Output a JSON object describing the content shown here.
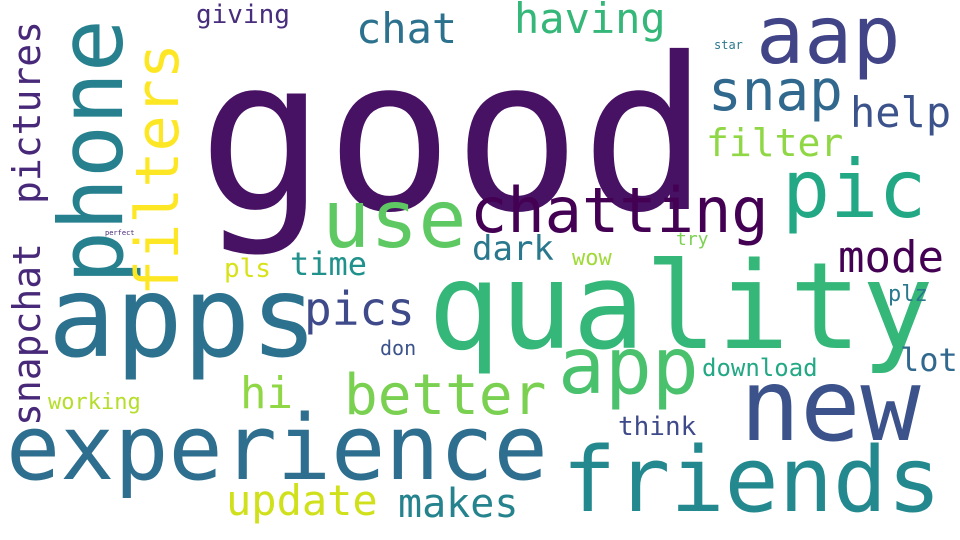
{
  "words": [
    {
      "text": "good",
      "color": "#471164"
    },
    {
      "text": "quality",
      "color": "#35b779"
    },
    {
      "text": "apps",
      "color": "#2c718e"
    },
    {
      "text": "experience",
      "color": "#2e6e8e"
    },
    {
      "text": "phone",
      "color": "#27808e"
    },
    {
      "text": "new",
      "color": "#3b528b"
    },
    {
      "text": "friends",
      "color": "#23898e"
    },
    {
      "text": "aap",
      "color": "#414487"
    },
    {
      "text": "use",
      "color": "#5ec962"
    },
    {
      "text": "pic",
      "color": "#22a884"
    },
    {
      "text": "app",
      "color": "#4ac16d"
    },
    {
      "text": "chatting",
      "color": "#440154"
    },
    {
      "text": "filters",
      "color": "#fde725"
    },
    {
      "text": "snap",
      "color": "#31688e"
    },
    {
      "text": "better",
      "color": "#7ad151"
    },
    {
      "text": "pics",
      "color": "#3e4a89"
    },
    {
      "text": "snapchat",
      "color": "#482878"
    },
    {
      "text": "pictures",
      "color": "#482878"
    },
    {
      "text": "mode",
      "color": "#440154"
    },
    {
      "text": "help",
      "color": "#3b528b"
    },
    {
      "text": "chat",
      "color": "#2c718e"
    },
    {
      "text": "having",
      "color": "#35b779"
    },
    {
      "text": "filter",
      "color": "#8fd744"
    },
    {
      "text": "update",
      "color": "#d0e11c"
    },
    {
      "text": "makes",
      "color": "#25838e"
    },
    {
      "text": "hi",
      "color": "#8fd744"
    },
    {
      "text": "dark",
      "color": "#2a788e"
    },
    {
      "text": "time",
      "color": "#21918c"
    },
    {
      "text": "lot",
      "color": "#31688e"
    },
    {
      "text": "download",
      "color": "#22a884"
    },
    {
      "text": "think",
      "color": "#3e4a89"
    },
    {
      "text": "giving",
      "color": "#472d7b"
    },
    {
      "text": "pls",
      "color": "#d8e219"
    },
    {
      "text": "wow",
      "color": "#a0da39"
    },
    {
      "text": "plz",
      "color": "#2a788e"
    },
    {
      "text": "working",
      "color": "#b5de2b"
    },
    {
      "text": "don",
      "color": "#3b528b"
    },
    {
      "text": "try",
      "color": "#7ad151"
    },
    {
      "text": "star",
      "color": "#2a788e"
    },
    {
      "text": "perfect",
      "color": "#482878"
    }
  ]
}
